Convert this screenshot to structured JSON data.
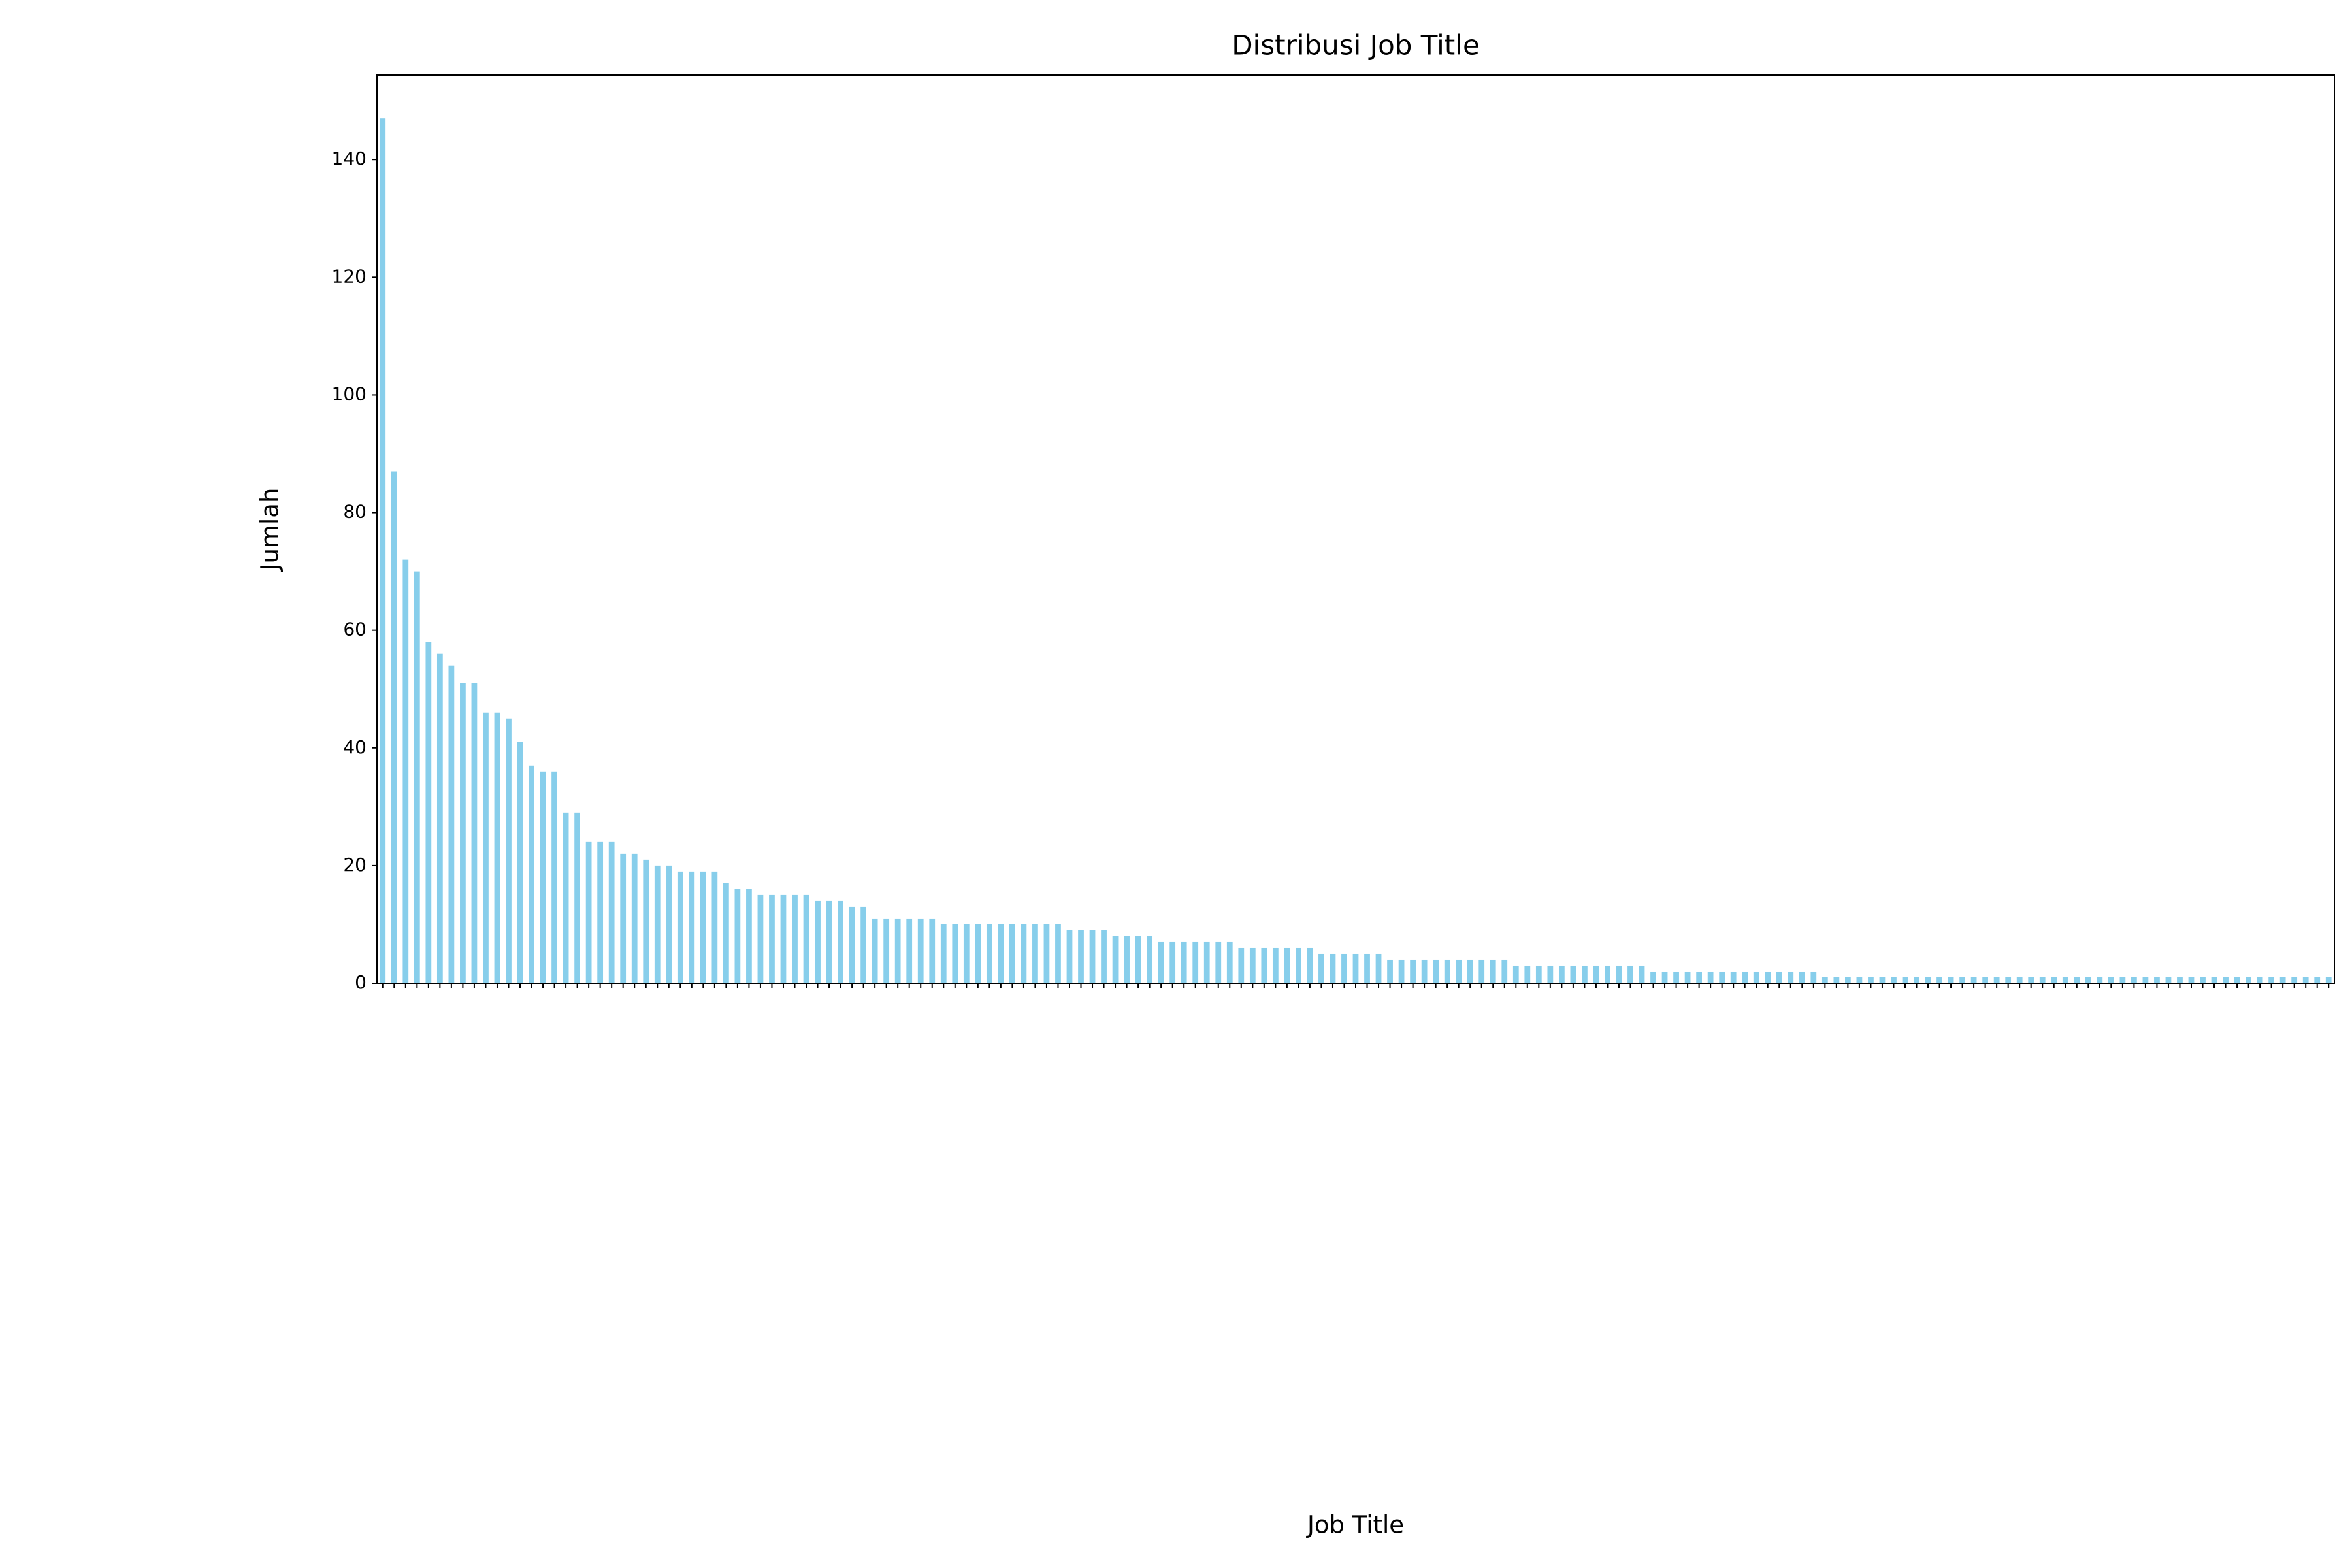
{
  "chart_data": {
    "type": "bar",
    "title": "Distribusi Job Title",
    "xlabel": "Job Title",
    "ylabel": "Jumlah",
    "color": "#87ceeb",
    "ylim": [
      0,
      154.35
    ],
    "yticks": [
      0,
      20,
      40,
      60,
      80,
      100,
      120,
      140
    ],
    "grid": false,
    "categories": [
      null,
      null,
      null,
      null,
      null,
      null,
      null,
      null,
      null,
      null,
      null,
      null,
      null,
      null,
      null,
      null,
      null,
      null,
      null,
      null,
      null,
      null,
      null,
      null,
      null,
      null,
      null,
      null,
      null,
      null,
      null,
      null,
      null,
      null,
      null,
      null,
      null,
      null,
      null,
      null,
      null,
      null,
      null,
      null,
      null,
      null,
      null,
      null,
      null,
      null,
      null,
      null,
      null,
      null,
      null,
      null,
      null,
      null,
      null,
      null,
      null,
      null,
      null,
      null,
      null,
      null,
      null,
      null,
      null,
      null,
      null,
      null,
      null,
      null,
      null,
      null,
      null,
      null,
      null,
      null,
      null,
      null,
      null,
      null,
      null,
      null,
      null,
      null,
      null,
      null,
      null,
      null,
      null,
      null,
      null,
      null,
      null,
      null,
      null,
      null,
      null,
      null,
      null,
      null,
      null,
      null,
      null,
      null,
      null,
      null,
      null,
      null,
      null,
      null,
      null,
      null,
      null,
      null,
      null,
      null,
      null,
      null,
      null,
      null,
      null,
      null,
      null,
      null,
      null,
      null,
      null,
      null,
      null,
      null,
      null,
      null,
      null,
      null,
      null,
      null,
      null,
      null,
      null,
      null,
      null,
      null,
      null,
      null,
      null,
      null,
      null,
      null,
      null,
      null,
      null,
      null,
      null,
      null,
      null,
      null,
      null,
      null,
      null,
      null,
      null,
      null,
      null,
      null,
      null,
      null,
      null
    ],
    "values": [
      147,
      87,
      72,
      70,
      58,
      56,
      54,
      51,
      51,
      46,
      46,
      45,
      41,
      37,
      36,
      36,
      29,
      29,
      24,
      24,
      24,
      22,
      22,
      21,
      20,
      20,
      19,
      19,
      19,
      19,
      17,
      16,
      16,
      15,
      15,
      15,
      15,
      15,
      14,
      14,
      14,
      13,
      13,
      11,
      11,
      11,
      11,
      11,
      11,
      10,
      10,
      10,
      10,
      10,
      10,
      10,
      10,
      10,
      10,
      10,
      9,
      9,
      9,
      9,
      8,
      8,
      8,
      8,
      7,
      7,
      7,
      7,
      7,
      7,
      7,
      6,
      6,
      6,
      6,
      6,
      6,
      6,
      5,
      5,
      5,
      5,
      5,
      5,
      4,
      4,
      4,
      4,
      4,
      4,
      4,
      4,
      4,
      4,
      4,
      3,
      3,
      3,
      3,
      3,
      3,
      3,
      3,
      3,
      3,
      3,
      3,
      2,
      2,
      2,
      2,
      2,
      2,
      2,
      2,
      2,
      2,
      2,
      2,
      2,
      2,
      2,
      1,
      1,
      1,
      1,
      1,
      1,
      1,
      1,
      1,
      1,
      1,
      1,
      1,
      1,
      1,
      1,
      1,
      1,
      1,
      1,
      1,
      1,
      1,
      1,
      1,
      1,
      1,
      1,
      1,
      1,
      1,
      1,
      1,
      1,
      1,
      1,
      1,
      1,
      1,
      1,
      1,
      1,
      1,
      1,
      1
    ]
  }
}
